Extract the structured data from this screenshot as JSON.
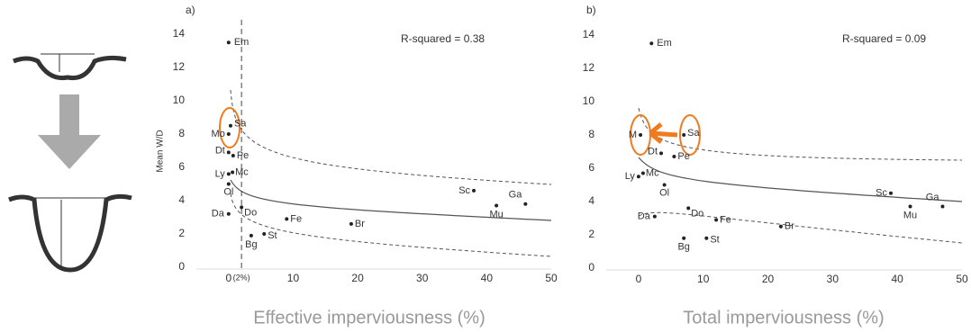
{
  "chart_data": [
    {
      "type": "scatter",
      "title": "a)",
      "annotation": "R-squared = 0.38",
      "y_label": "Mean W/D",
      "x_label": "Effective imperviousness (%)",
      "threshold": {
        "value": 2,
        "label": "(2%)"
      },
      "labels": [
        "Em",
        "Sa",
        "Mo",
        "Dt",
        "Pe",
        "Ly",
        "Mc",
        "Ol",
        "Da",
        "Do",
        "Fe",
        "Br",
        "Bg",
        "St",
        "Sc",
        "Mu",
        "Ga"
      ],
      "x": [
        0,
        0.3,
        0,
        0,
        0.7,
        0,
        0.6,
        0,
        0,
        2,
        9,
        19,
        3.5,
        5.5,
        38,
        41.5,
        46
      ],
      "values": [
        13.5,
        8.5,
        8,
        6.9,
        6.7,
        5.6,
        5.7,
        5,
        3.2,
        3.6,
        2.9,
        2.6,
        1.9,
        2,
        4.6,
        3.7,
        3.8
      ],
      "color": "#222222",
      "xlim": [
        -5,
        50
      ],
      "xticks": [
        0,
        10,
        20,
        30,
        40,
        50
      ],
      "ylim": [
        0,
        14
      ],
      "yticks": [
        0,
        2,
        4,
        6,
        8,
        10,
        12,
        14
      ]
    },
    {
      "type": "scatter",
      "title": "b)",
      "annotation": "R-squared = 0.09",
      "x_label": "Total imperviousness (%)",
      "labels": [
        "Em",
        "Sa",
        "M",
        "Dt",
        "Pe",
        "Ly",
        "Mc",
        "Ol",
        "Da",
        "Do",
        "Fe",
        "Br",
        "Bg",
        "St",
        "Sc",
        "Mu",
        "Ga"
      ],
      "x": [
        2,
        7,
        0.3,
        3.5,
        5.5,
        0,
        0.7,
        4,
        2.5,
        7.7,
        12,
        22,
        7,
        10.5,
        39,
        42,
        47
      ],
      "values": [
        13.5,
        8,
        8,
        6.9,
        6.7,
        5.5,
        5.7,
        5,
        3.1,
        3.6,
        2.9,
        2.5,
        1.8,
        1.8,
        4.5,
        3.7,
        3.7
      ],
      "color": "#222222",
      "xlim": [
        -5,
        50
      ],
      "xticks": [
        0,
        10,
        20,
        30,
        40,
        50
      ],
      "ylim": [
        0,
        14
      ],
      "yticks": [
        0,
        2,
        4,
        6,
        8,
        10,
        12,
        14
      ]
    }
  ]
}
